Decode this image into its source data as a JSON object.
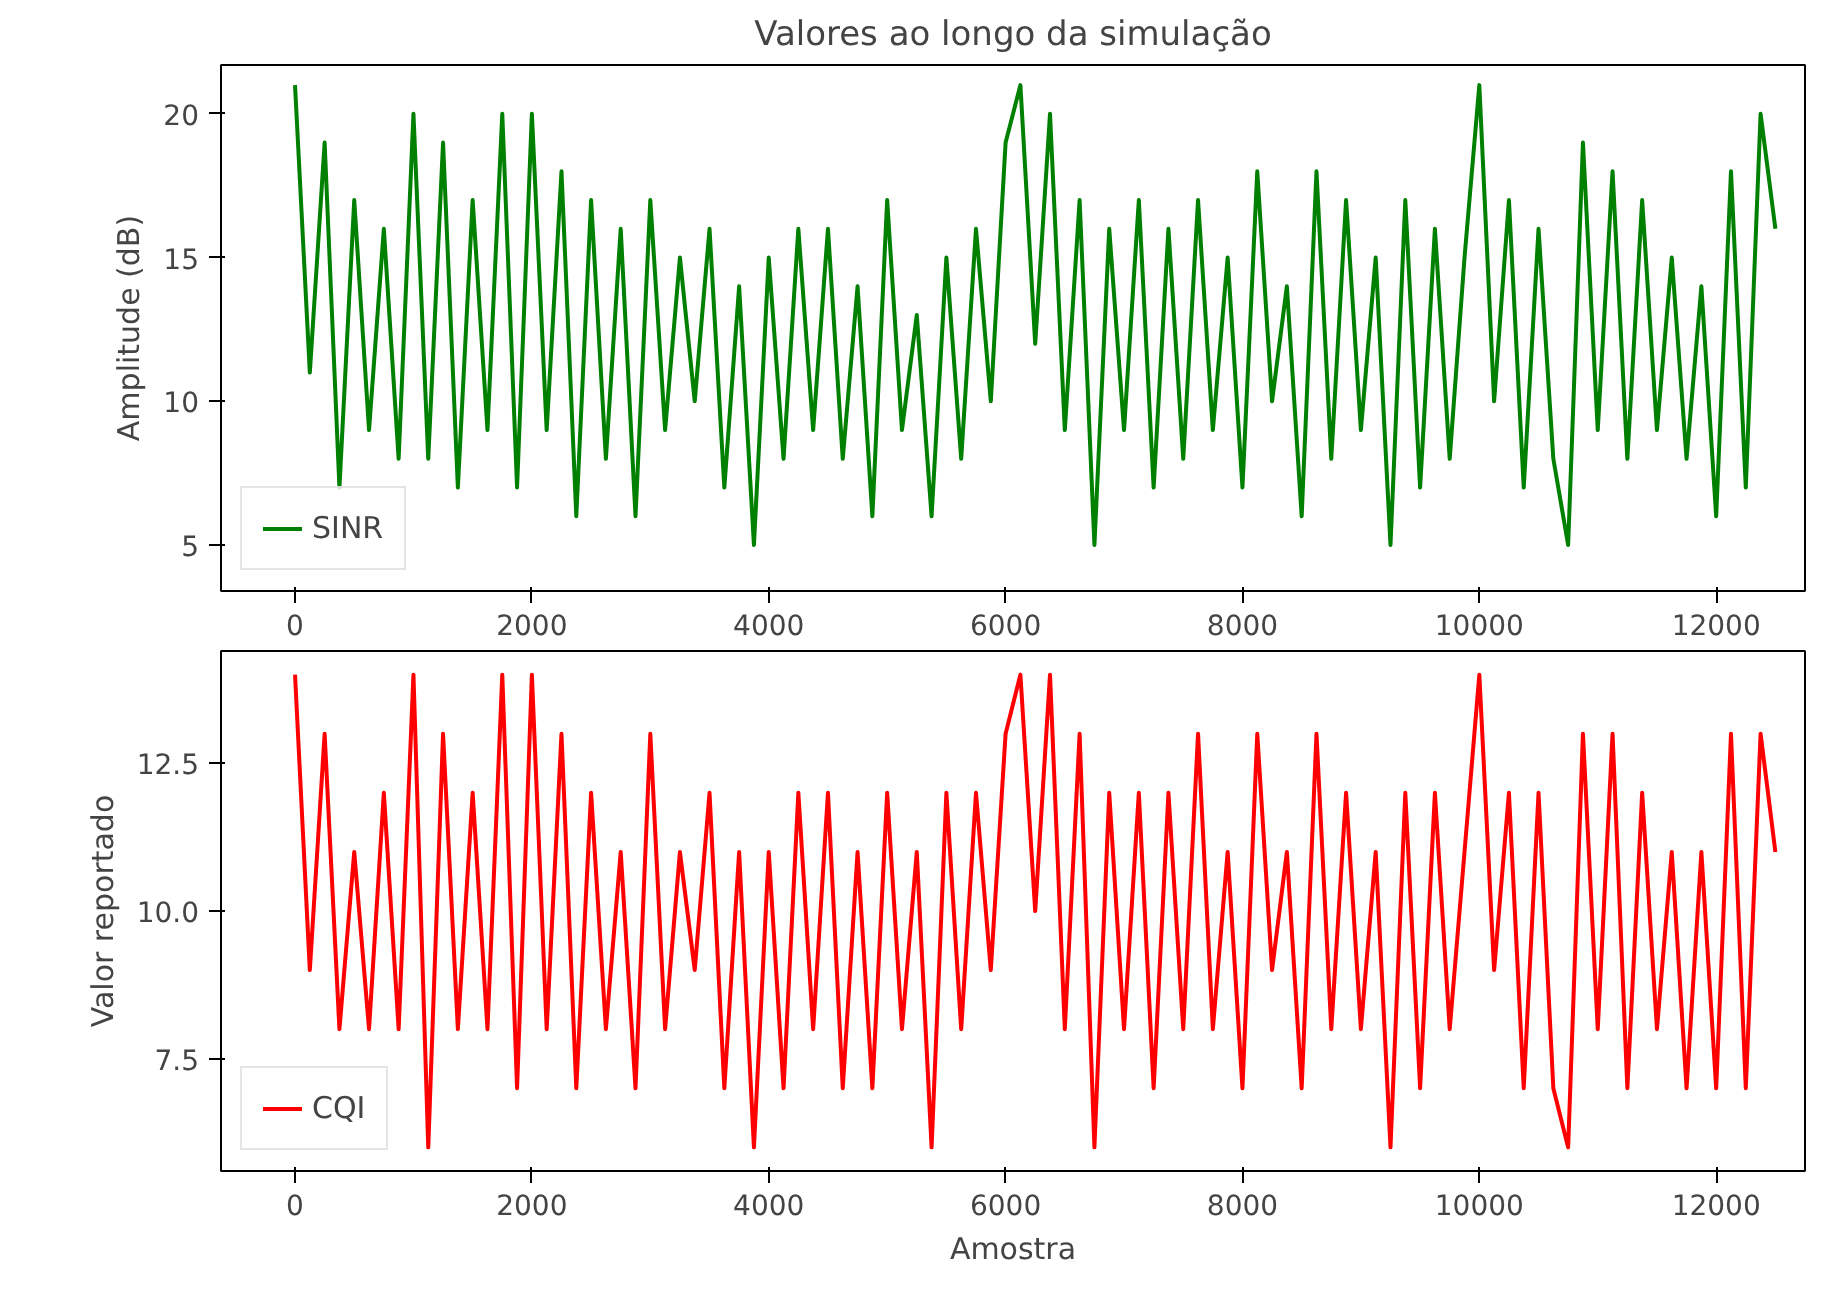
{
  "chart_data": [
    {
      "type": "line",
      "title": "Valores ao longo da simulação",
      "ylabel": "Amplitude (dB)",
      "xlim": [
        -625,
        12750
      ],
      "ylim": [
        3.4,
        21.7
      ],
      "xticks": [
        0,
        2000,
        4000,
        6000,
        8000,
        10000,
        12000
      ],
      "yticks": [
        5,
        10,
        15,
        20
      ],
      "grid": false,
      "legend": "bottom left",
      "x": [
        0,
        125,
        250,
        375,
        500,
        625,
        750,
        875,
        1000,
        1125,
        1250,
        1375,
        1500,
        1625,
        1750,
        1875,
        2000,
        2125,
        2250,
        2375,
        2500,
        2625,
        2750,
        2875,
        3000,
        3125,
        3250,
        3375,
        3500,
        3625,
        3750,
        3875,
        4000,
        4125,
        4250,
        4375,
        4500,
        4625,
        4750,
        4875,
        5000,
        5125,
        5250,
        5375,
        5500,
        5625,
        5750,
        5875,
        6000,
        6125,
        6250,
        6375,
        6500,
        6625,
        6750,
        6875,
        7000,
        7125,
        7250,
        7375,
        7500,
        7625,
        7750,
        7875,
        8000,
        8125,
        8250,
        8375,
        8500,
        8625,
        8750,
        8875,
        9000,
        9125,
        9250,
        9375,
        9500,
        9625,
        9750,
        9875,
        10000,
        10125,
        10250,
        10375,
        10500,
        10625,
        10750,
        10875,
        11000,
        11125,
        11250,
        11375,
        11500,
        11625,
        11750,
        11875,
        12000,
        12125,
        12250,
        12375,
        12500
      ],
      "series": [
        {
          "name": "SINR",
          "color": "#008000",
          "values": [
            21,
            11,
            19,
            7,
            17,
            9,
            16,
            8,
            20,
            8,
            19,
            7,
            17,
            9,
            20,
            7,
            20,
            9,
            18,
            6,
            17,
            8,
            16,
            6,
            17,
            9,
            15,
            10,
            16,
            7,
            14,
            5,
            15,
            8,
            16,
            9,
            16,
            8,
            14,
            6,
            17,
            9,
            13,
            6,
            15,
            8,
            16,
            10,
            19,
            21,
            12,
            20,
            9,
            17,
            5,
            16,
            9,
            17,
            7,
            16,
            8,
            17,
            9,
            15,
            7,
            18,
            10,
            14,
            6,
            18,
            8,
            17,
            9,
            15,
            5,
            17,
            7,
            16,
            8,
            15,
            21,
            10,
            17,
            7,
            16,
            8,
            5,
            19,
            9,
            18,
            8,
            17,
            9,
            15,
            8,
            14,
            6,
            18,
            7,
            20,
            16
          ]
        }
      ]
    },
    {
      "type": "line",
      "xlabel": "Amostra",
      "ylabel": "Valor reportado",
      "xlim": [
        -625,
        12750
      ],
      "ylim": [
        5.6,
        14.4
      ],
      "xticks": [
        0,
        2000,
        4000,
        6000,
        8000,
        10000,
        12000
      ],
      "yticks": [
        {
          "value": 7.5,
          "label": "7.5"
        },
        {
          "value": 10,
          "label": "10.0"
        },
        {
          "value": 12.5,
          "label": "12.5"
        }
      ],
      "grid": false,
      "legend": "bottom left",
      "x": [
        0,
        125,
        250,
        375,
        500,
        625,
        750,
        875,
        1000,
        1125,
        1250,
        1375,
        1500,
        1625,
        1750,
        1875,
        2000,
        2125,
        2250,
        2375,
        2500,
        2625,
        2750,
        2875,
        3000,
        3125,
        3250,
        3375,
        3500,
        3625,
        3750,
        3875,
        4000,
        4125,
        4250,
        4375,
        4500,
        4625,
        4750,
        4875,
        5000,
        5125,
        5250,
        5375,
        5500,
        5625,
        5750,
        5875,
        6000,
        6125,
        6250,
        6375,
        6500,
        6625,
        6750,
        6875,
        7000,
        7125,
        7250,
        7375,
        7500,
        7625,
        7750,
        7875,
        8000,
        8125,
        8250,
        8375,
        8500,
        8625,
        8750,
        8875,
        9000,
        9125,
        9250,
        9375,
        9500,
        9625,
        9750,
        9875,
        10000,
        10125,
        10250,
        10375,
        10500,
        10625,
        10750,
        10875,
        11000,
        11125,
        11250,
        11375,
        11500,
        11625,
        11750,
        11875,
        12000,
        12125,
        12250,
        12375,
        12500
      ],
      "series": [
        {
          "name": "CQI",
          "color": "#ff0000",
          "values": [
            14,
            9,
            13,
            8,
            11,
            8,
            12,
            8,
            14,
            6,
            13,
            8,
            12,
            8,
            14,
            7,
            14,
            8,
            13,
            7,
            12,
            8,
            11,
            7,
            13,
            8,
            11,
            9,
            12,
            7,
            11,
            6,
            11,
            7,
            12,
            8,
            12,
            7,
            11,
            7,
            12,
            8,
            11,
            6,
            12,
            8,
            12,
            9,
            13,
            14,
            10,
            14,
            8,
            13,
            6,
            12,
            8,
            12,
            7,
            12,
            8,
            13,
            8,
            11,
            7,
            13,
            9,
            11,
            7,
            13,
            8,
            12,
            8,
            11,
            6,
            12,
            7,
            12,
            8,
            11,
            14,
            9,
            12,
            7,
            12,
            7,
            6,
            13,
            8,
            13,
            7,
            12,
            8,
            11,
            7,
            11,
            7,
            13,
            7,
            13,
            11
          ]
        }
      ]
    }
  ]
}
